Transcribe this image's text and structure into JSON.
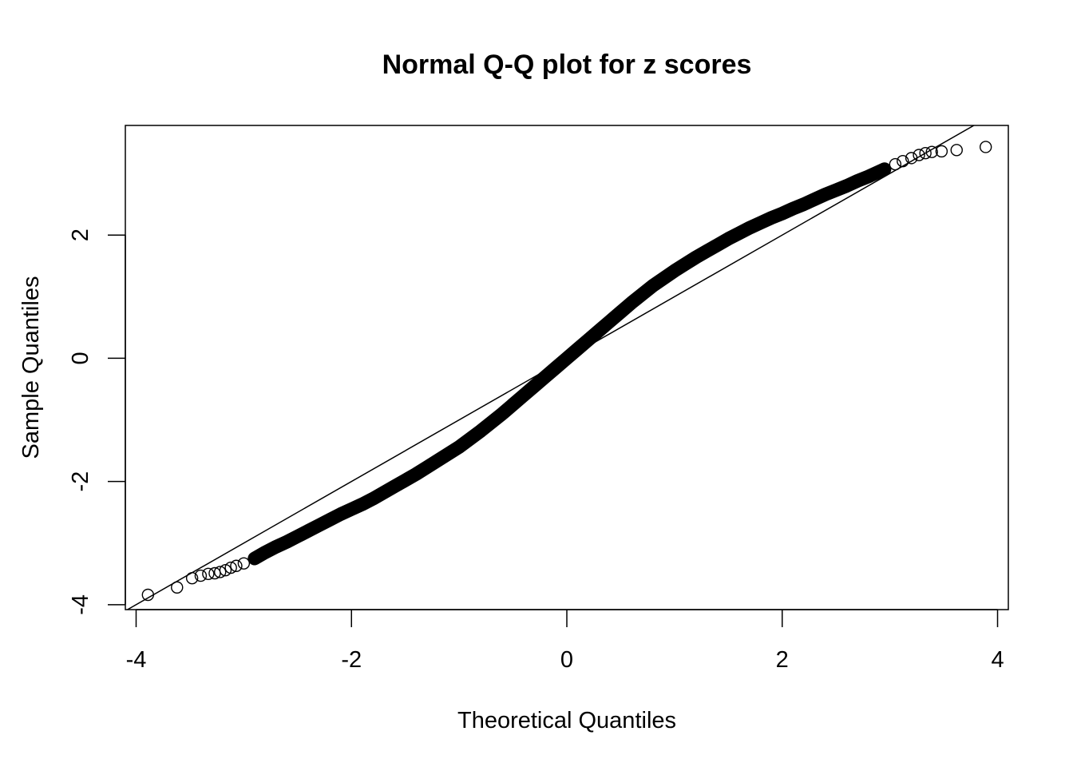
{
  "chart_data": {
    "type": "scatter",
    "title": "Normal Q-Q plot for z scores",
    "xlabel": "Theoretical Quantiles",
    "ylabel": "Sample Quantiles",
    "xlim": [
      -4.1,
      4.1
    ],
    "ylim": [
      -4.08,
      3.78
    ],
    "xticks": [
      "-4",
      "-2",
      "0",
      "2",
      "4"
    ],
    "yticks": [
      "-4",
      "-2",
      "0",
      "2"
    ],
    "grid": false,
    "reference_line": {
      "slope": 1.0,
      "intercept": 0.0
    },
    "marker": "open-circle",
    "color": "#000000",
    "x": [
      -3.89,
      -3.62,
      -3.48,
      -3.4,
      -3.33,
      -3.27,
      -3.22,
      -3.17,
      -3.12,
      -3.07,
      -3.0,
      -2.9,
      -2.8,
      -2.7,
      -2.6,
      -2.5,
      -2.4,
      -2.3,
      -2.2,
      -2.1,
      -2.0,
      -1.9,
      -1.8,
      -1.7,
      -1.6,
      -1.5,
      -1.4,
      -1.3,
      -1.2,
      -1.1,
      -1.0,
      -0.9,
      -0.8,
      -0.7,
      -0.6,
      -0.5,
      -0.4,
      -0.3,
      -0.2,
      -0.1,
      0.0,
      0.1,
      0.2,
      0.3,
      0.4,
      0.5,
      0.6,
      0.7,
      0.8,
      0.9,
      1.0,
      1.1,
      1.2,
      1.3,
      1.4,
      1.5,
      1.6,
      1.7,
      1.8,
      1.9,
      2.0,
      2.1,
      2.2,
      2.3,
      2.4,
      2.5,
      2.6,
      2.7,
      2.8,
      2.9,
      2.95,
      3.05,
      3.12,
      3.2,
      3.27,
      3.33,
      3.39,
      3.48,
      3.62,
      3.89
    ],
    "y": [
      -3.84,
      -3.72,
      -3.57,
      -3.53,
      -3.5,
      -3.49,
      -3.47,
      -3.44,
      -3.4,
      -3.37,
      -3.33,
      -3.25,
      -3.15,
      -3.06,
      -2.98,
      -2.89,
      -2.8,
      -2.71,
      -2.62,
      -2.53,
      -2.45,
      -2.37,
      -2.28,
      -2.18,
      -2.08,
      -1.98,
      -1.88,
      -1.77,
      -1.66,
      -1.55,
      -1.44,
      -1.31,
      -1.18,
      -1.04,
      -0.9,
      -0.75,
      -0.6,
      -0.45,
      -0.3,
      -0.15,
      0.0,
      0.15,
      0.3,
      0.45,
      0.6,
      0.75,
      0.9,
      1.04,
      1.18,
      1.3,
      1.42,
      1.53,
      1.64,
      1.74,
      1.84,
      1.94,
      2.03,
      2.12,
      2.2,
      2.28,
      2.35,
      2.43,
      2.5,
      2.58,
      2.66,
      2.73,
      2.8,
      2.88,
      2.95,
      3.03,
      3.07,
      3.15,
      3.2,
      3.25,
      3.3,
      3.33,
      3.35,
      3.36,
      3.38,
      3.43
    ]
  }
}
